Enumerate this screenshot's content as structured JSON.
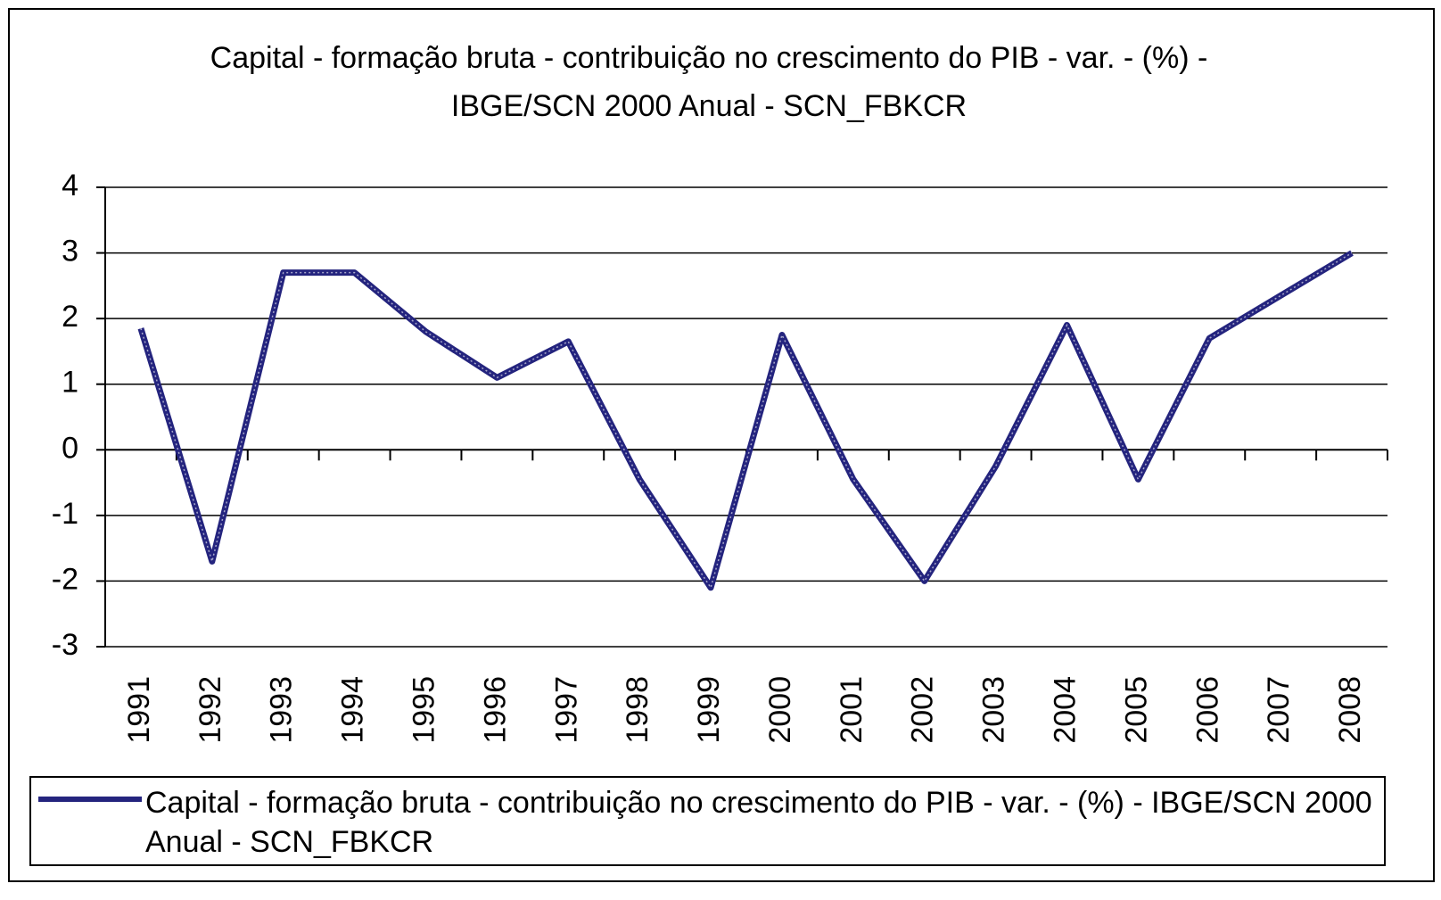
{
  "chart_data": {
    "type": "line",
    "title": "Capital - formação bruta - contribuição no crescimento do PIB - var. - (%) - IBGE/SCN 2000 Anual - SCN_FBKCR",
    "categories": [
      "1991",
      "1992",
      "1993",
      "1994",
      "1995",
      "1996",
      "1997",
      "1998",
      "1999",
      "2000",
      "2001",
      "2002",
      "2003",
      "2004",
      "2005",
      "2006",
      "2007",
      "2008"
    ],
    "series": [
      {
        "name": "Capital - formação bruta - contribuição no crescimento do PIB - var. - (%) - IBGE/SCN 2000 Anual - SCN_FBKCR",
        "color": "#24247e",
        "values": [
          1.85,
          -1.7,
          2.7,
          2.7,
          1.8,
          1.1,
          1.65,
          -0.45,
          -2.1,
          1.75,
          -0.45,
          -2.0,
          -0.25,
          1.9,
          -0.45,
          1.7,
          2.35,
          3.0
        ]
      }
    ],
    "ylim": [
      -3,
      4
    ],
    "yticks": [
      -3,
      -2,
      -1,
      0,
      1,
      2,
      3,
      4
    ],
    "grid": true,
    "legend": "bottom"
  }
}
